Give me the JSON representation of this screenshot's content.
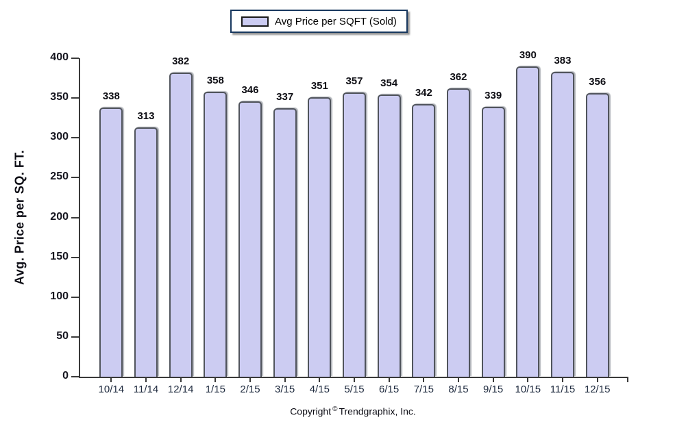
{
  "legend": {
    "label": "Avg Price per SQFT (Sold)",
    "swatch_color": "#ccccf2",
    "border_color": "#17375e"
  },
  "chart_data": {
    "type": "bar",
    "title": "",
    "categories": [
      "10/14",
      "11/14",
      "12/14",
      "1/15",
      "2/15",
      "3/15",
      "4/15",
      "5/15",
      "6/15",
      "7/15",
      "8/15",
      "9/15",
      "10/15",
      "11/15",
      "12/15"
    ],
    "series": [
      {
        "name": "Avg Price per SQFT (Sold)",
        "values": [
          338,
          313,
          382,
          358,
          346,
          337,
          351,
          357,
          354,
          342,
          362,
          339,
          390,
          383,
          356
        ]
      }
    ],
    "xlabel": "",
    "ylabel": "Avg. Price per SQ. FT.",
    "ylim": [
      0,
      400
    ],
    "ytick_step": 50,
    "grid": false,
    "legend_position": "top-center",
    "value_labels": true,
    "colors": {
      "bar_fill": "#ccccf2",
      "bar_border": "#50545c",
      "axis": "#3a3a3a"
    }
  },
  "footer": {
    "copyright_prefix": "Copyright",
    "copyright_symbol": "©",
    "copyright_company": "Trendgraphix, Inc."
  }
}
